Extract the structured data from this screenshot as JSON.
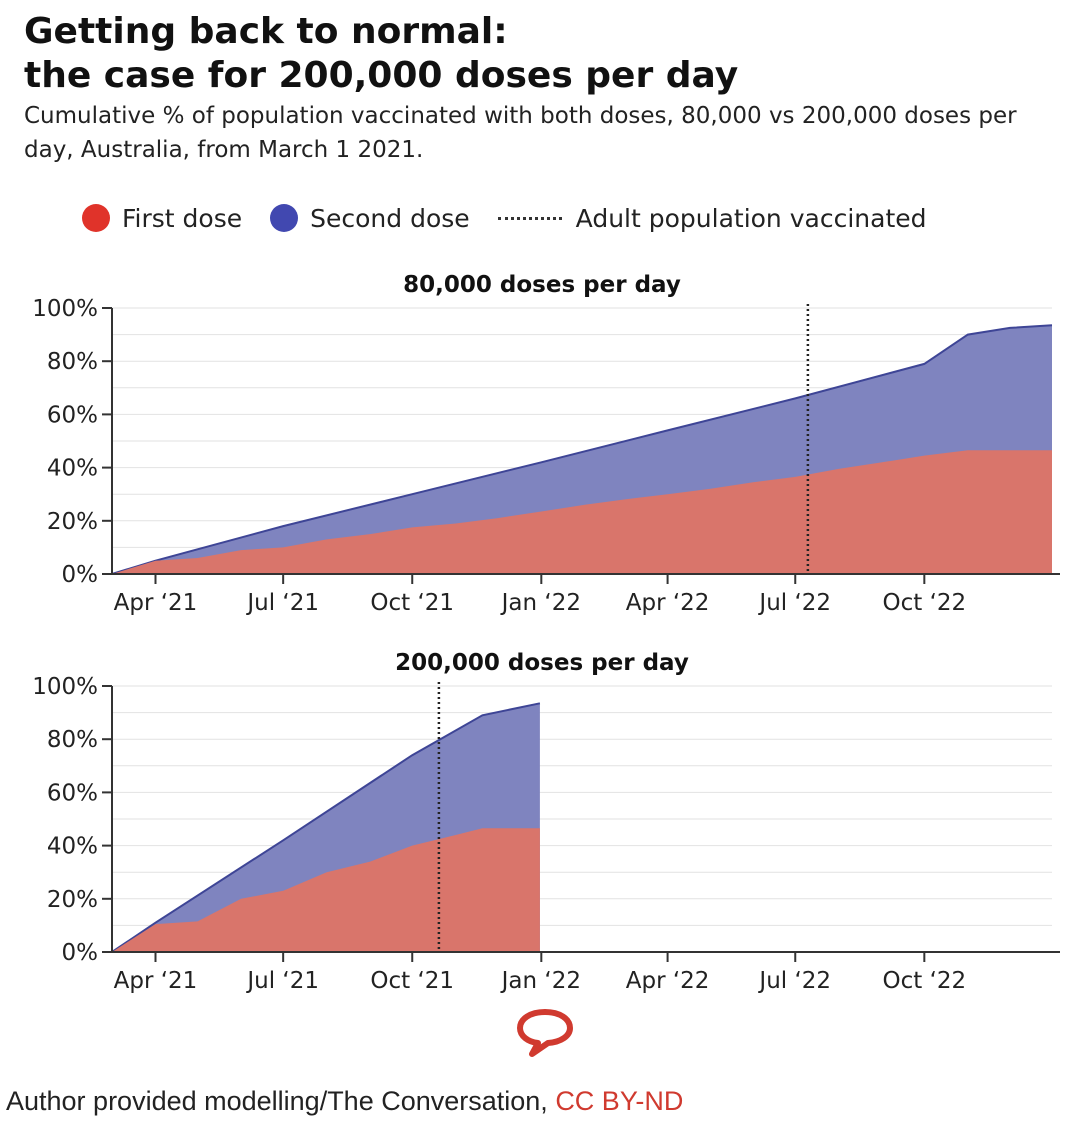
{
  "title": "Getting back to normal:\nthe case for 200,000 doses per day",
  "subtitle": "Cumulative % of population vaccinated with both doses, 80,000 vs 200,000 doses per day, Australia, from March 1 2021.",
  "legend": {
    "first_dose": "First dose",
    "second_dose": "Second dose",
    "adult_population": "Adult population vaccinated"
  },
  "colors": {
    "first_dose": "#d9756b",
    "first_dose_dot": "#e0332a",
    "second_dose": "#7f84bf",
    "second_dose_line": "#3e4596",
    "second_dose_dot": "#4148b0",
    "grid": "#e2e2e2",
    "axis": "#333333"
  },
  "credit": {
    "text": "Author provided modelling/The Conversation, ",
    "license": "CC BY-ND"
  },
  "chart_data": [
    {
      "type": "area",
      "title": "80,000 doses per day",
      "x_axis": {
        "type": "date",
        "range": [
          "2021-03-01",
          "2022-12-31"
        ],
        "ticks": [
          {
            "date": "2021-04-01",
            "label": "Apr ‘21"
          },
          {
            "date": "2021-07-01",
            "label": "Jul ‘21"
          },
          {
            "date": "2021-10-01",
            "label": "Oct ‘21"
          },
          {
            "date": "2022-01-01",
            "label": "Jan ‘22"
          },
          {
            "date": "2022-04-01",
            "label": "Apr ‘22"
          },
          {
            "date": "2022-07-01",
            "label": "Jul ‘22"
          },
          {
            "date": "2022-10-01",
            "label": "Oct ‘22"
          }
        ]
      },
      "y_axis": {
        "range": [
          0,
          100
        ],
        "ticks": [
          {
            "value": 0,
            "label": "0%"
          },
          {
            "value": 20,
            "label": "20%"
          },
          {
            "value": 40,
            "label": "40%"
          },
          {
            "value": 60,
            "label": "60%"
          },
          {
            "value": 80,
            "label": "80%"
          },
          {
            "value": 100,
            "label": "100%"
          }
        ]
      },
      "grid": true,
      "adult_population_vaccinated_date": "2022-07-10",
      "series": [
        {
          "name": "First dose",
          "points": [
            [
              "2021-03-01",
              0
            ],
            [
              "2021-04-01",
              5
            ],
            [
              "2021-05-01",
              6
            ],
            [
              "2021-06-01",
              9
            ],
            [
              "2021-07-01",
              10
            ],
            [
              "2021-08-01",
              13
            ],
            [
              "2021-09-01",
              15
            ],
            [
              "2021-10-01",
              17.5
            ],
            [
              "2021-11-01",
              19
            ],
            [
              "2021-12-01",
              21
            ],
            [
              "2022-01-01",
              23.5
            ],
            [
              "2022-02-01",
              26
            ],
            [
              "2022-03-01",
              28
            ],
            [
              "2022-04-01",
              30
            ],
            [
              "2022-05-01",
              32
            ],
            [
              "2022-06-01",
              34.5
            ],
            [
              "2022-07-01",
              36.5
            ],
            [
              "2022-08-01",
              39.5
            ],
            [
              "2022-09-01",
              42
            ],
            [
              "2022-10-01",
              44.5
            ],
            [
              "2022-11-01",
              46.5
            ],
            [
              "2022-12-01",
              46.5
            ],
            [
              "2022-12-31",
              46.5
            ]
          ]
        },
        {
          "name": "Second dose",
          "points": [
            [
              "2021-03-01",
              0
            ],
            [
              "2021-04-01",
              5
            ],
            [
              "2021-07-01",
              18
            ],
            [
              "2021-10-01",
              30
            ],
            [
              "2022-01-01",
              42
            ],
            [
              "2022-04-01",
              54
            ],
            [
              "2022-07-01",
              66
            ],
            [
              "2022-10-01",
              79
            ],
            [
              "2022-11-01",
              90
            ],
            [
              "2022-12-01",
              92.5
            ],
            [
              "2022-12-31",
              93.5
            ]
          ]
        }
      ]
    },
    {
      "type": "area",
      "title": "200,000 doses per day",
      "x_axis": {
        "type": "date",
        "range": [
          "2021-03-01",
          "2022-12-31"
        ],
        "ticks": [
          {
            "date": "2021-04-01",
            "label": "Apr ‘21"
          },
          {
            "date": "2021-07-01",
            "label": "Jul ‘21"
          },
          {
            "date": "2021-10-01",
            "label": "Oct ‘21"
          },
          {
            "date": "2022-01-01",
            "label": "Jan ‘22"
          },
          {
            "date": "2022-04-01",
            "label": "Apr ‘22"
          },
          {
            "date": "2022-07-01",
            "label": "Jul ‘22"
          },
          {
            "date": "2022-10-01",
            "label": "Oct ‘22"
          }
        ]
      },
      "y_axis": {
        "range": [
          0,
          100
        ],
        "ticks": [
          {
            "value": 0,
            "label": "0%"
          },
          {
            "value": 20,
            "label": "20%"
          },
          {
            "value": 40,
            "label": "40%"
          },
          {
            "value": 60,
            "label": "60%"
          },
          {
            "value": 80,
            "label": "80%"
          },
          {
            "value": 100,
            "label": "100%"
          }
        ]
      },
      "grid": true,
      "adult_population_vaccinated_date": "2021-10-20",
      "series": [
        {
          "name": "First dose",
          "points": [
            [
              "2021-03-01",
              0
            ],
            [
              "2021-04-01",
              10.5
            ],
            [
              "2021-05-01",
              11.5
            ],
            [
              "2021-06-01",
              20
            ],
            [
              "2021-07-01",
              23
            ],
            [
              "2021-08-01",
              30
            ],
            [
              "2021-09-01",
              34
            ],
            [
              "2021-10-01",
              40
            ],
            [
              "2021-11-01",
              44
            ],
            [
              "2021-11-20",
              46.5
            ],
            [
              "2021-12-31",
              46.5
            ]
          ]
        },
        {
          "name": "Second dose",
          "points": [
            [
              "2021-03-01",
              0
            ],
            [
              "2021-04-01",
              11
            ],
            [
              "2021-07-01",
              42
            ],
            [
              "2021-10-01",
              74
            ],
            [
              "2021-11-20",
              89
            ],
            [
              "2021-12-31",
              93.5
            ]
          ]
        }
      ]
    }
  ]
}
